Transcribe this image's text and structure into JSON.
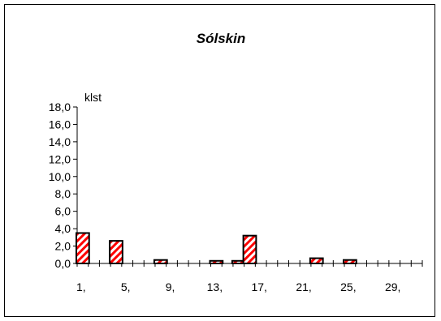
{
  "chart_data": {
    "type": "bar",
    "title": "Sólskin",
    "ylabel": "klst",
    "xlabel": "",
    "ylim": [
      0,
      18
    ],
    "y_ticks": [
      "0,0",
      "2,0",
      "4,0",
      "6,0",
      "8,0",
      "10,0",
      "12,0",
      "14,0",
      "16,0",
      "18,0"
    ],
    "x_tick_labels": [
      "1,",
      "5,",
      "9,",
      "13,",
      "17,",
      "21,",
      "25,",
      "29,"
    ],
    "days": [
      1,
      2,
      3,
      4,
      5,
      6,
      7,
      8,
      9,
      10,
      11,
      12,
      13,
      14,
      15,
      16,
      17,
      18,
      19,
      20,
      21,
      22,
      23,
      24,
      25,
      26,
      27,
      28,
      29,
      30,
      31
    ],
    "values": [
      3.5,
      0,
      0,
      2.6,
      0,
      0,
      0,
      0.4,
      0,
      0,
      0,
      0,
      0.3,
      0,
      0.3,
      3.2,
      0,
      0,
      0,
      0,
      0,
      0.6,
      0,
      0,
      0.4,
      0,
      0,
      0,
      0,
      0,
      0
    ],
    "grid": false,
    "colors": {
      "bar_fill": "#ff0000",
      "bar_stripe": "#ffffff",
      "bar_border": "#000000"
    }
  }
}
